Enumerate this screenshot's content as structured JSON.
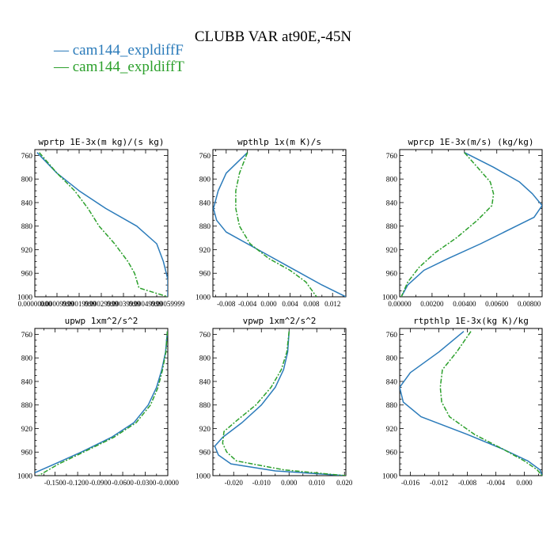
{
  "title": "CLUBB VAR at90E,-45N",
  "legend": [
    {
      "name": "cam144_expldiffF",
      "color": "#2b7bba"
    },
    {
      "name": "cam144_expldiffT",
      "color": "#2ca02c"
    }
  ],
  "chart_data": [
    {
      "type": "line",
      "title": "wprtp  1E-3x(m kg)/(s kg)",
      "ylim": [
        1000,
        750
      ],
      "yticks": [
        "760",
        "800",
        "840",
        "880",
        "920",
        "960",
        "1000"
      ],
      "xlim": [
        0,
        0.0006
      ],
      "xticks": [
        "0.00000000",
        "0.00009999",
        "0.00019999",
        "0.00029999",
        "0.00039999",
        "0.00049999",
        "0.00059999"
      ],
      "series": [
        {
          "name": "cam144_expldiffF",
          "color": "#2b7bba",
          "dash": "none",
          "points": [
            [
              1e-05,
              755
            ],
            [
              0.0001,
              790
            ],
            [
              0.0002,
              820
            ],
            [
              0.00032,
              850
            ],
            [
              0.00046,
              880
            ],
            [
              0.00055,
              910
            ],
            [
              0.00058,
              940
            ],
            [
              0.0006,
              970
            ],
            [
              0.0006,
              1000
            ]
          ]
        },
        {
          "name": "cam144_expldiffT",
          "color": "#2ca02c",
          "dash": "6,2,2,2",
          "points": [
            [
              2e-05,
              755
            ],
            [
              0.0001,
              790
            ],
            [
              0.00018,
              820
            ],
            [
              0.00024,
              850
            ],
            [
              0.00029,
              880
            ],
            [
              0.00036,
              910
            ],
            [
              0.00042,
              940
            ],
            [
              0.00045,
              960
            ],
            [
              0.00047,
              985
            ],
            [
              0.0006,
              1000
            ]
          ]
        }
      ]
    },
    {
      "type": "line",
      "title": "wpthlp  1x(m K)/s",
      "ylim": [
        1000,
        750
      ],
      "yticks": [
        "760",
        "800",
        "840",
        "880",
        "920",
        "960",
        "1000"
      ],
      "xlim": [
        -0.0105,
        0.0145
      ],
      "xticks": [
        "-0.008",
        "-0.004",
        "0.000",
        "0.004",
        "0.008",
        "0.012"
      ],
      "xtick_values": [
        -0.008,
        -0.004,
        0,
        0.004,
        0.008,
        0.012
      ],
      "series": [
        {
          "name": "cam144_expldiffF",
          "color": "#2b7bba",
          "dash": "none",
          "points": [
            [
              -0.004,
              755
            ],
            [
              -0.008,
              790
            ],
            [
              -0.0095,
              820
            ],
            [
              -0.0104,
              850
            ],
            [
              -0.0098,
              870
            ],
            [
              -0.008,
              890
            ],
            [
              -0.002,
              920
            ],
            [
              0.004,
              950
            ],
            [
              0.01,
              980
            ],
            [
              0.0145,
              1000
            ]
          ]
        },
        {
          "name": "cam144_expldiffT",
          "color": "#2ca02c",
          "dash": "6,2,2,2",
          "points": [
            [
              -0.004,
              755
            ],
            [
              -0.0055,
              790
            ],
            [
              -0.0062,
              820
            ],
            [
              -0.0062,
              850
            ],
            [
              -0.0055,
              880
            ],
            [
              -0.0035,
              910
            ],
            [
              0.0,
              935
            ],
            [
              0.004,
              955
            ],
            [
              0.007,
              975
            ],
            [
              0.009,
              1000
            ]
          ]
        }
      ]
    },
    {
      "type": "line",
      "title": "wprcp  1E-3x(m/s) (kg/kg)",
      "ylim": [
        1000,
        750
      ],
      "yticks": [
        "760",
        "800",
        "840",
        "880",
        "920",
        "960",
        "1000"
      ],
      "xlim": [
        0,
        0.0088
      ],
      "xticks": [
        "0.00000",
        "0.00200",
        "0.00400",
        "0.00600",
        "0.00800"
      ],
      "xtick_values": [
        0,
        0.002,
        0.004,
        0.006,
        0.008
      ],
      "series": [
        {
          "name": "cam144_expldiffF",
          "color": "#2b7bba",
          "dash": "none",
          "points": [
            [
              0.004,
              755
            ],
            [
              0.0058,
              780
            ],
            [
              0.0074,
              805
            ],
            [
              0.0082,
              825
            ],
            [
              0.0088,
              845
            ],
            [
              0.0083,
              865
            ],
            [
              0.0072,
              880
            ],
            [
              0.005,
              910
            ],
            [
              0.003,
              935
            ],
            [
              0.0015,
              955
            ],
            [
              0.0005,
              980
            ],
            [
              0.0001,
              1000
            ]
          ]
        },
        {
          "name": "cam144_expldiffT",
          "color": "#2ca02c",
          "dash": "6,2,2,2",
          "points": [
            [
              0.004,
              755
            ],
            [
              0.0048,
              780
            ],
            [
              0.0056,
              805
            ],
            [
              0.0058,
              825
            ],
            [
              0.0057,
              845
            ],
            [
              0.0048,
              870
            ],
            [
              0.0035,
              900
            ],
            [
              0.0022,
              925
            ],
            [
              0.0012,
              950
            ],
            [
              0.0005,
              975
            ],
            [
              0.0001,
              1000
            ]
          ]
        }
      ]
    },
    {
      "type": "line",
      "title": "upwp  1xm^2/s^2",
      "ylim": [
        1000,
        750
      ],
      "yticks": [
        "760",
        "800",
        "840",
        "880",
        "920",
        "960",
        "1000"
      ],
      "xlim": [
        -0.177,
        0
      ],
      "xticks": [
        "-0.1500",
        "-0.1200",
        "-0.0900",
        "-0.0600",
        "-0.0300",
        "-0.0000"
      ],
      "xtick_values": [
        -0.15,
        -0.12,
        -0.09,
        -0.06,
        -0.03,
        0
      ],
      "series": [
        {
          "name": "cam144_expldiffF",
          "color": "#2b7bba",
          "dash": "none",
          "points": [
            [
              -0.0005,
              755
            ],
            [
              -0.003,
              790
            ],
            [
              -0.008,
              820
            ],
            [
              -0.015,
              850
            ],
            [
              -0.026,
              880
            ],
            [
              -0.045,
              910
            ],
            [
              -0.075,
              935
            ],
            [
              -0.115,
              960
            ],
            [
              -0.15,
              980
            ],
            [
              -0.177,
              995
            ]
          ]
        },
        {
          "name": "cam144_expldiffT",
          "color": "#2ca02c",
          "dash": "6,2,2,2",
          "points": [
            [
              -0.0005,
              755
            ],
            [
              -0.0025,
              790
            ],
            [
              -0.007,
              820
            ],
            [
              -0.013,
              850
            ],
            [
              -0.023,
              880
            ],
            [
              -0.042,
              910
            ],
            [
              -0.072,
              935
            ],
            [
              -0.112,
              960
            ],
            [
              -0.145,
              980
            ],
            [
              -0.172,
              1000
            ]
          ]
        }
      ]
    },
    {
      "type": "line",
      "title": "vpwp  1xm^2/s^2",
      "ylim": [
        1000,
        750
      ],
      "yticks": [
        "760",
        "800",
        "840",
        "880",
        "920",
        "960",
        "1000"
      ],
      "xlim": [
        -0.0275,
        0.0205
      ],
      "xticks": [
        "-0.020",
        "-0.010",
        "0.000",
        "0.010",
        "0.020"
      ],
      "xtick_values": [
        -0.02,
        -0.01,
        0,
        0.01,
        0.02
      ],
      "series": [
        {
          "name": "cam144_expldiffF",
          "color": "#2b7bba",
          "dash": "none",
          "points": [
            [
              0.0,
              755
            ],
            [
              -0.0005,
              790
            ],
            [
              -0.002,
              820
            ],
            [
              -0.005,
              850
            ],
            [
              -0.01,
              880
            ],
            [
              -0.017,
              910
            ],
            [
              -0.024,
              935
            ],
            [
              -0.0268,
              950
            ],
            [
              -0.0255,
              965
            ],
            [
              -0.021,
              980
            ],
            [
              -0.005,
              992
            ],
            [
              0.0205,
              1000
            ]
          ]
        },
        {
          "name": "cam144_expldiffT",
          "color": "#2ca02c",
          "dash": "6,2,2,2",
          "points": [
            [
              0.0,
              755
            ],
            [
              -0.0008,
              790
            ],
            [
              -0.0028,
              820
            ],
            [
              -0.0065,
              850
            ],
            [
              -0.012,
              880
            ],
            [
              -0.0185,
              905
            ],
            [
              -0.0235,
              925
            ],
            [
              -0.024,
              945
            ],
            [
              -0.0225,
              960
            ],
            [
              -0.019,
              975
            ],
            [
              -0.002,
              990
            ],
            [
              0.0205,
              1000
            ]
          ]
        }
      ]
    },
    {
      "type": "line",
      "title": "rtpthlp  1E-3x(kg K)/kg",
      "ylim": [
        1000,
        750
      ],
      "yticks": [
        "760",
        "800",
        "840",
        "880",
        "920",
        "960",
        "1000"
      ],
      "xlim": [
        -0.0175,
        0.0025
      ],
      "xticks": [
        "-0.016",
        "-0.012",
        "-0.008",
        "-0.004",
        "0.000"
      ],
      "xtick_values": [
        -0.016,
        -0.012,
        -0.008,
        -0.004,
        0
      ],
      "series": [
        {
          "name": "cam144_expldiffF",
          "color": "#2b7bba",
          "dash": "none",
          "points": [
            [
              -0.0085,
              755
            ],
            [
              -0.012,
              790
            ],
            [
              -0.016,
              825
            ],
            [
              -0.0175,
              850
            ],
            [
              -0.017,
              875
            ],
            [
              -0.0145,
              900
            ],
            [
              -0.008,
              930
            ],
            [
              -0.003,
              955
            ],
            [
              0.0005,
              975
            ],
            [
              0.0022,
              990
            ],
            [
              0.0025,
              1000
            ]
          ]
        },
        {
          "name": "cam144_expldiffT",
          "color": "#2ca02c",
          "dash": "6,2,2,2",
          "points": [
            [
              -0.0075,
              755
            ],
            [
              -0.0095,
              790
            ],
            [
              -0.0115,
              820
            ],
            [
              -0.0118,
              850
            ],
            [
              -0.0116,
              875
            ],
            [
              -0.0105,
              900
            ],
            [
              -0.007,
              930
            ],
            [
              -0.003,
              955
            ],
            [
              0.0,
              975
            ],
            [
              0.0018,
              990
            ],
            [
              0.0025,
              1000
            ]
          ]
        }
      ]
    }
  ]
}
